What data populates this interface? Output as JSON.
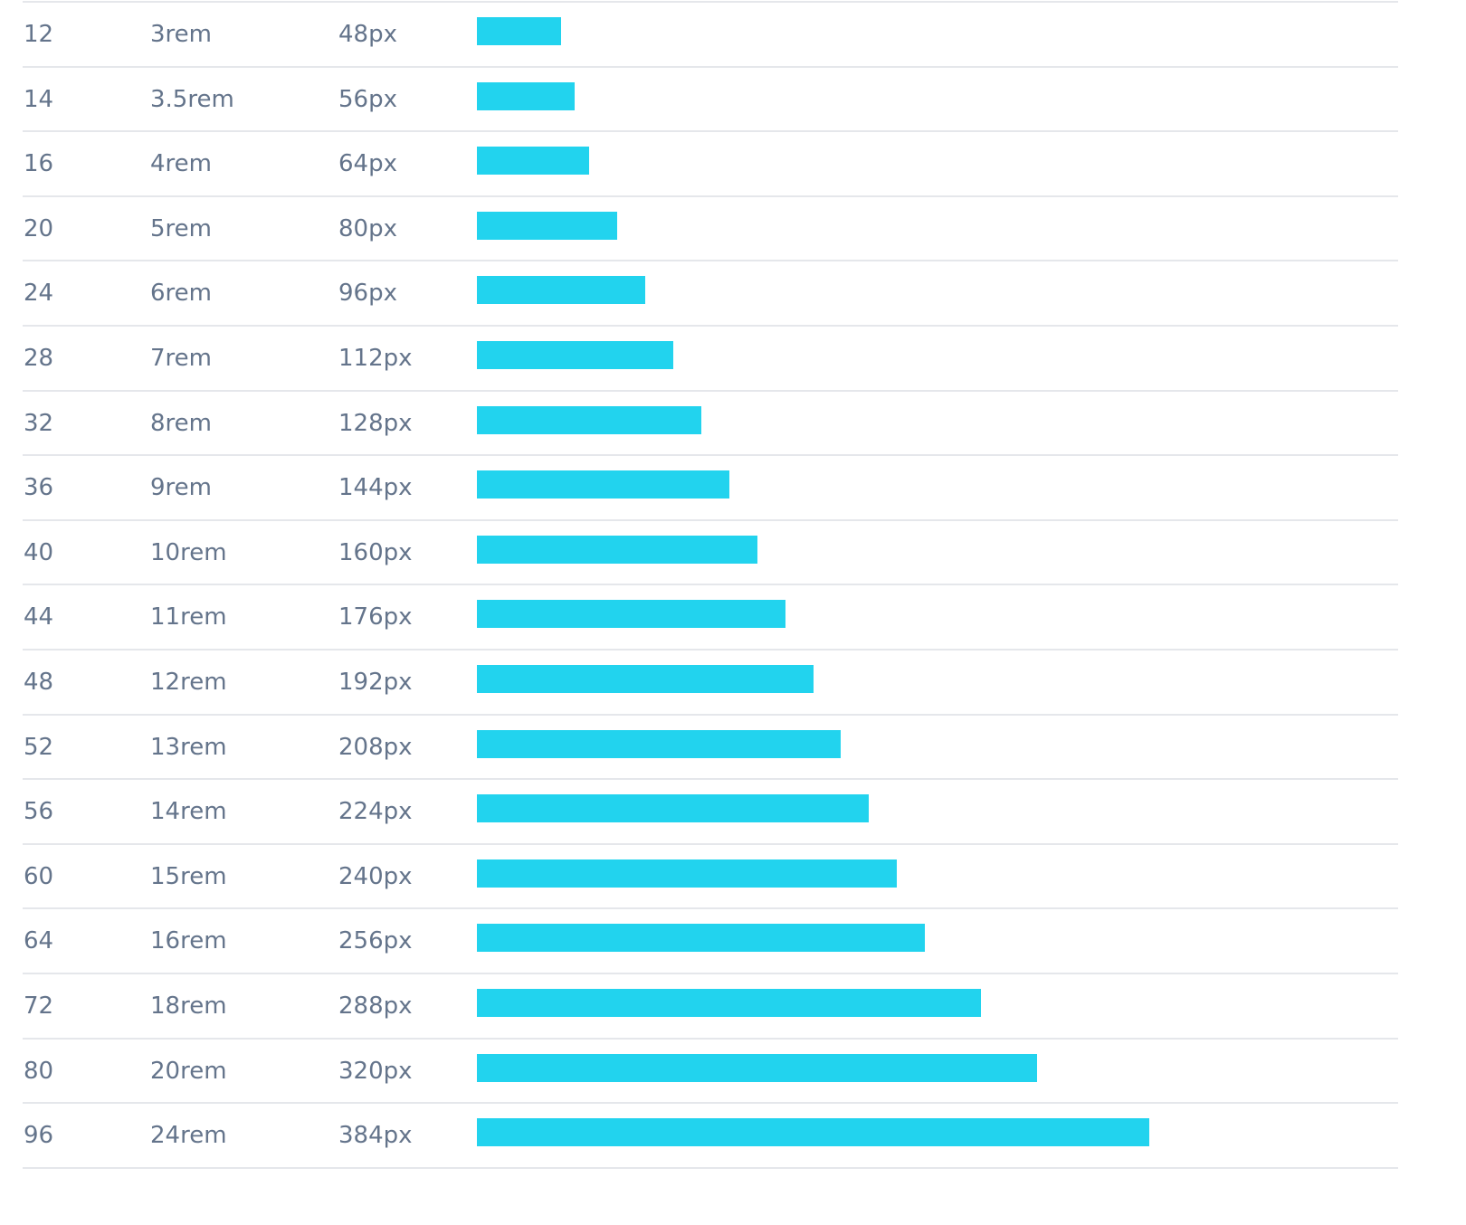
{
  "table": {
    "rows": [
      [
        "12",
        "3rem",
        {
          "value": 48,
          "label": "48px"
        }
      ],
      [
        "14",
        "3.5rem",
        {
          "value": 56,
          "label": "56px"
        }
      ],
      [
        "16",
        "4rem",
        {
          "value": 64,
          "label": "64px"
        }
      ],
      [
        "20",
        "5rem",
        {
          "value": 80,
          "label": "80px"
        }
      ],
      [
        "24",
        "6rem",
        {
          "value": 96,
          "label": "96px"
        }
      ],
      [
        "28",
        "7rem",
        {
          "value": 112,
          "label": "112px"
        }
      ],
      [
        "32",
        "8rem",
        {
          "value": 128,
          "label": "128px"
        }
      ],
      [
        "36",
        "9rem",
        {
          "value": 144,
          "label": "144px"
        }
      ],
      [
        "40",
        "10rem",
        {
          "value": 160,
          "label": "160px"
        }
      ],
      [
        "44",
        "11rem",
        {
          "value": 176,
          "label": "176px"
        }
      ],
      [
        "48",
        "12rem",
        {
          "value": 192,
          "label": "192px"
        }
      ],
      [
        "52",
        "13rem",
        {
          "value": 208,
          "label": "208px"
        }
      ],
      [
        "56",
        "14rem",
        {
          "value": 224,
          "label": "224px"
        }
      ],
      [
        "60",
        "15rem",
        {
          "value": 240,
          "label": "240px"
        }
      ],
      [
        "64",
        "16rem",
        {
          "value": 256,
          "label": "256px"
        }
      ],
      [
        "72",
        "18rem",
        {
          "value": 288,
          "label": "288px"
        }
      ],
      [
        "80",
        "20rem",
        {
          "value": 320,
          "label": "320px"
        }
      ],
      [
        "96",
        "24rem",
        {
          "value": 384,
          "label": "384px"
        }
      ]
    ],
    "bar_color": "#22d3ee"
  }
}
